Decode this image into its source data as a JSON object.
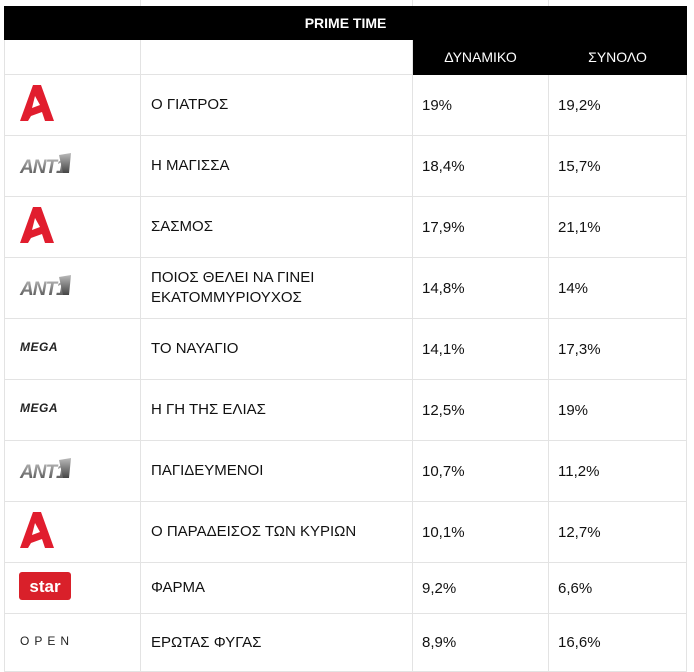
{
  "table": {
    "title": "PRIME TIME",
    "columns": [
      "",
      "",
      "ΔΥΝΑΜΙΚΟ",
      "ΣΥΝΟΛΟ"
    ],
    "rows": [
      {
        "channel": "alpha",
        "show": "Ο ΓΙΑΤΡΟΣ",
        "dynamic": "19%",
        "total": "19,2%"
      },
      {
        "channel": "ant1",
        "show": "Η ΜΑΓΙΣΣΑ",
        "dynamic": "18,4%",
        "total": "15,7%"
      },
      {
        "channel": "alpha",
        "show": "ΣΑΣΜΟΣ",
        "dynamic": "17,9%",
        "total": "21,1%"
      },
      {
        "channel": "ant1",
        "show": "ΠΟΙΟΣ ΘΕΛΕΙ ΝΑ ΓΙΝΕΙ ΕΚΑΤΟΜΜΥΡΙΟΥΧΟΣ",
        "dynamic": "14,8%",
        "total": "14%"
      },
      {
        "channel": "mega",
        "show": "ΤΟ ΝΑΥΑΓΙΟ",
        "dynamic": "14,1%",
        "total": "17,3%"
      },
      {
        "channel": "mega",
        "show": "Η ΓΗ ΤΗΣ ΕΛΙΑΣ",
        "dynamic": "12,5%",
        "total": "19%"
      },
      {
        "channel": "ant1",
        "show": "ΠΑΓΙΔΕΥΜΕΝΟΙ",
        "dynamic": "10,7%",
        "total": "11,2%"
      },
      {
        "channel": "alpha",
        "show": "Ο ΠΑΡΑΔΕΙΣΟΣ ΤΩΝ ΚΥΡΙΩΝ",
        "dynamic": "10,1%",
        "total": "12,7%"
      },
      {
        "channel": "star",
        "show": "ΦΑΡΜΑ",
        "dynamic": "9,2%",
        "total": "6,6%"
      },
      {
        "channel": "open",
        "show": "ΕΡΩΤΑΣ ΦΥΓΑΣ",
        "dynamic": "8,9%",
        "total": "16,6%"
      }
    ]
  },
  "logos": {
    "alpha_color": "#e11d2e",
    "star_color": "#d9202a",
    "star_text": "star",
    "mega_text": "MEGA",
    "open_text": "OPEN",
    "ant1_text": "ANT1"
  }
}
